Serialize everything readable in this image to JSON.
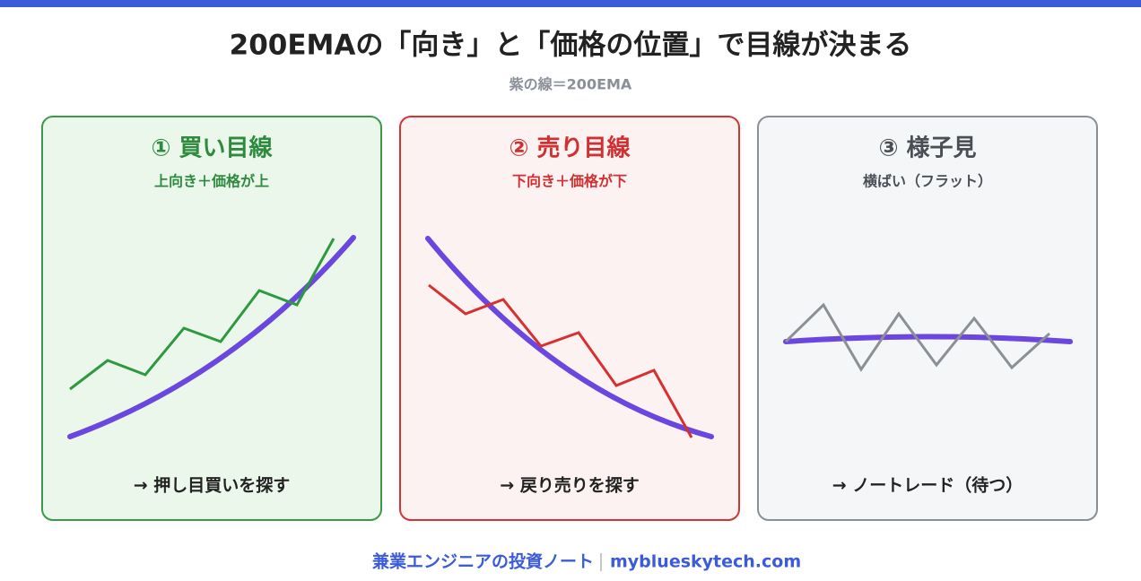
{
  "header": {
    "title": "200EMAの「向き」と「価格の位置」で目線が決まる",
    "subtitle": "紫の線＝200EMA"
  },
  "panels": [
    {
      "title": "① 買い目線",
      "subtitle": "上向き＋価格が上",
      "action": "→ 押し目買いを探す"
    },
    {
      "title": "② 売り目線",
      "subtitle": "下向き＋価格が下",
      "action": "→ 戻り売りを探す"
    },
    {
      "title": "③ 様子見",
      "subtitle": "横ばい（フラット）",
      "action": "→ ノートレード（待つ）"
    }
  ],
  "footer": {
    "brand": "兼業エンジニアの投資ノート",
    "site": "myblueskytech.com"
  }
}
